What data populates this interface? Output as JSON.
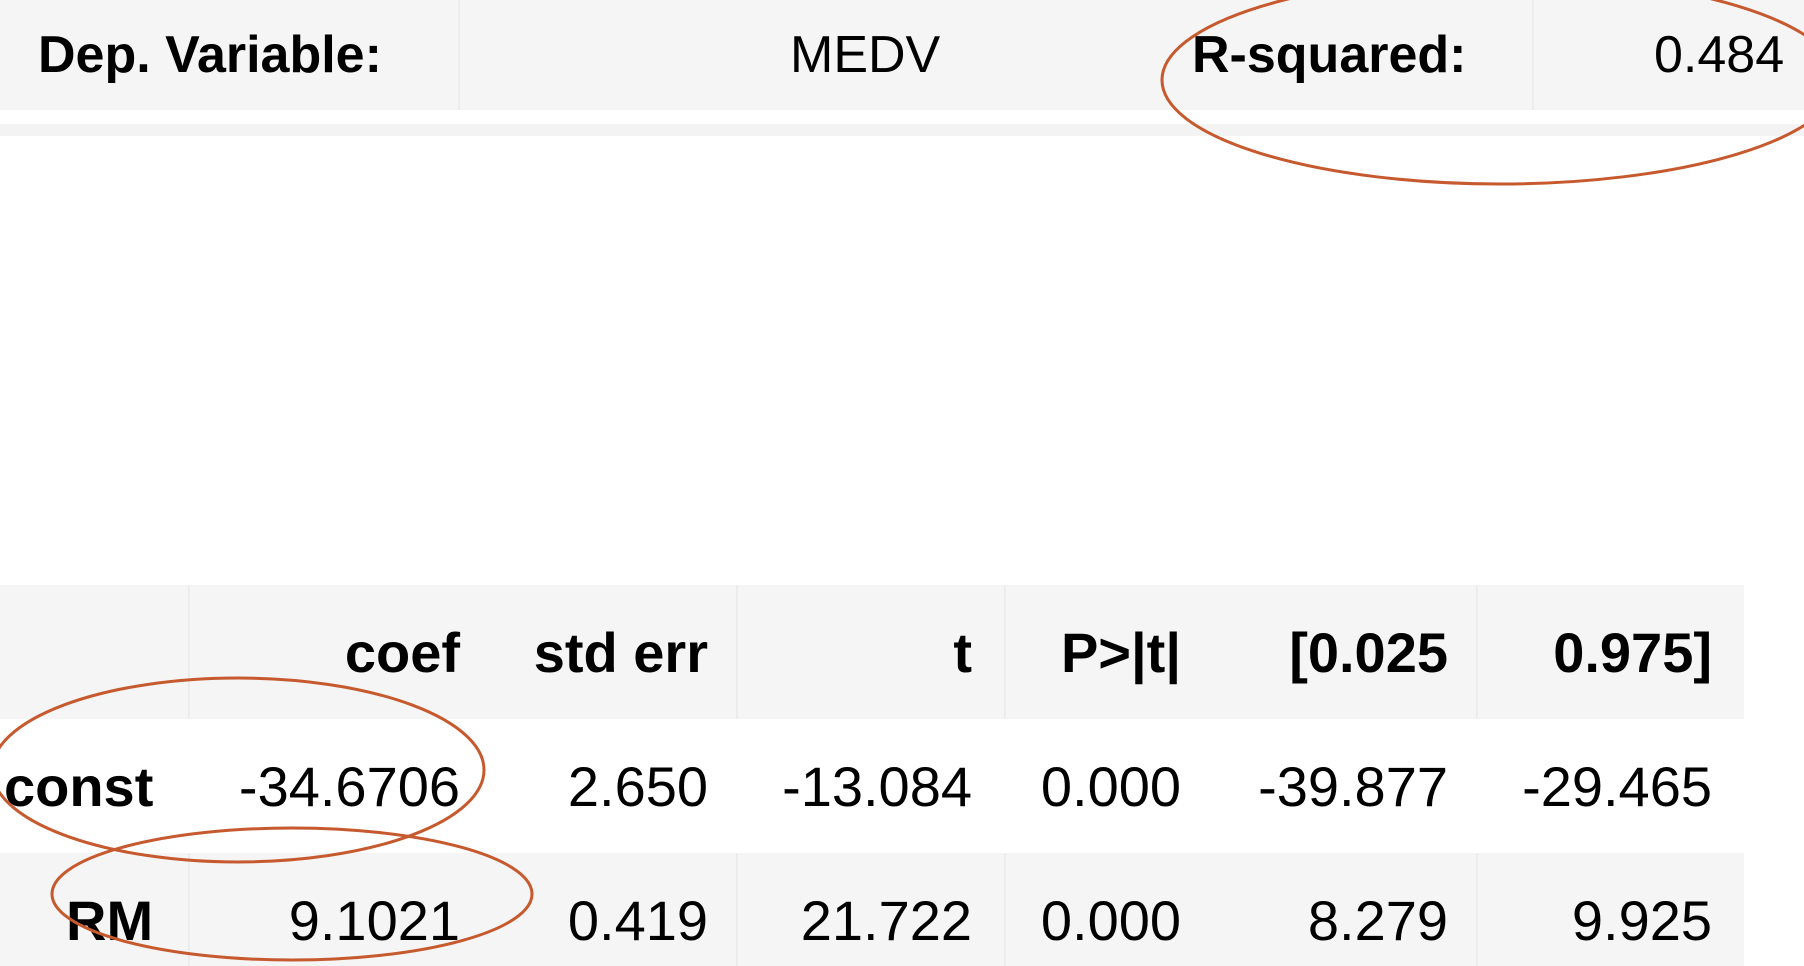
{
  "summary": {
    "dep_variable_label": "Dep. Variable:",
    "dep_variable_value": "MEDV",
    "r_squared_label": "R-squared:",
    "r_squared_value": "0.484"
  },
  "coef_table": {
    "headers": [
      "",
      "coef",
      "std err",
      "t",
      "P>|t|",
      "[0.025",
      "0.975]"
    ],
    "rows": [
      {
        "name": "const",
        "coef": "-34.6706",
        "std_err": "2.650",
        "t": "-13.084",
        "p": "0.000",
        "ci_low": "-39.877",
        "ci_high": "-29.465"
      },
      {
        "name": "RM",
        "coef": "9.1021",
        "std_err": "0.419",
        "t": "21.722",
        "p": "0.000",
        "ci_low": "8.279",
        "ci_high": "9.925"
      }
    ]
  },
  "colors": {
    "annotation": "#c65a2e",
    "row_shade": "#f5f5f5"
  }
}
